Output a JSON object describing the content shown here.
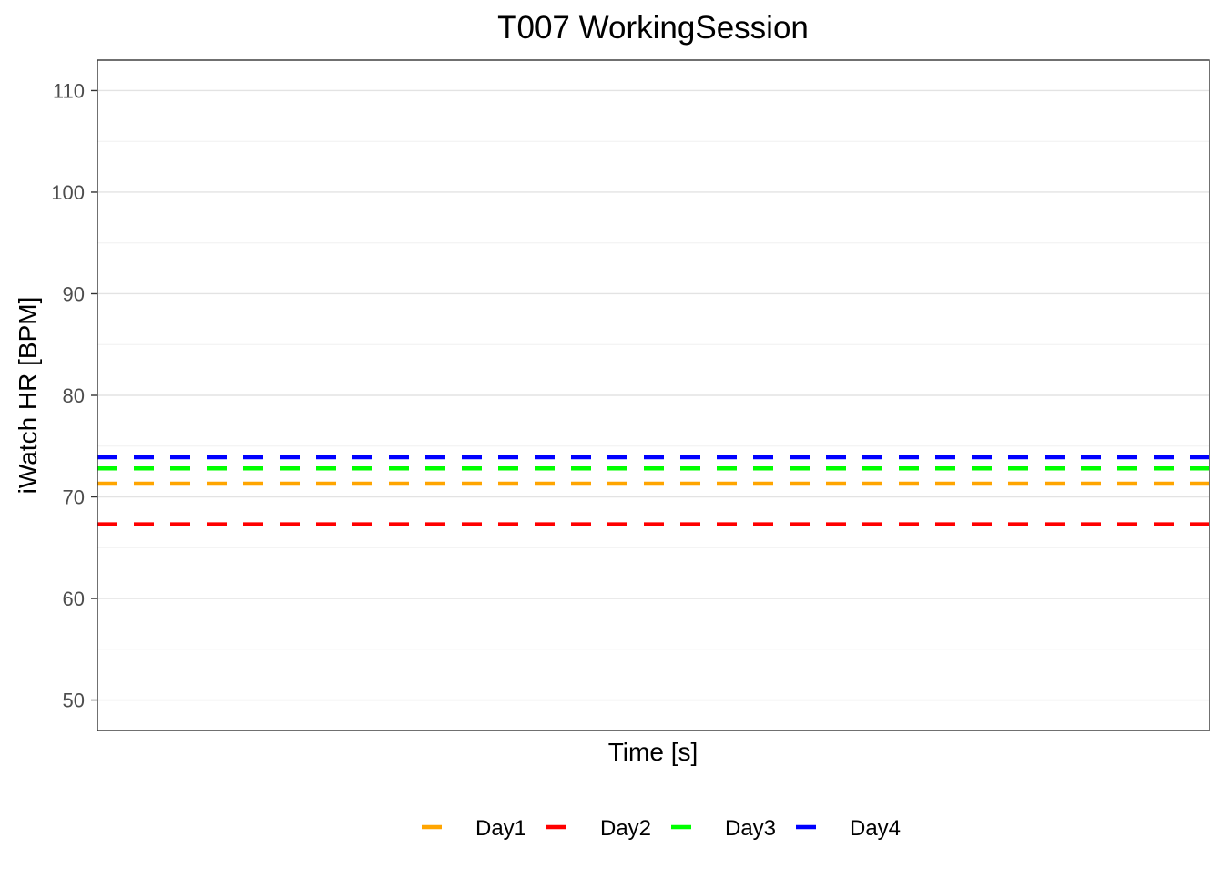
{
  "chart_data": {
    "type": "line",
    "title": "T007 WorkingSession",
    "xlabel": "Time [s]",
    "ylabel": "iWatch HR [BPM]",
    "ylim": [
      47,
      113
    ],
    "y_ticks": [
      50,
      60,
      70,
      80,
      90,
      100,
      110
    ],
    "y_minor_ticks": [
      55,
      65,
      75,
      85,
      95,
      105
    ],
    "x_ticks": [],
    "grid": true,
    "legend_position": "bottom",
    "line_style": "dashed",
    "series": [
      {
        "name": "Day1",
        "color": "#FFA500",
        "value": 71.3
      },
      {
        "name": "Day2",
        "color": "#FF0000",
        "value": 67.3
      },
      {
        "name": "Day3",
        "color": "#00FF00",
        "value": 72.8
      },
      {
        "name": "Day4",
        "color": "#0000FF",
        "value": 73.9
      }
    ]
  }
}
